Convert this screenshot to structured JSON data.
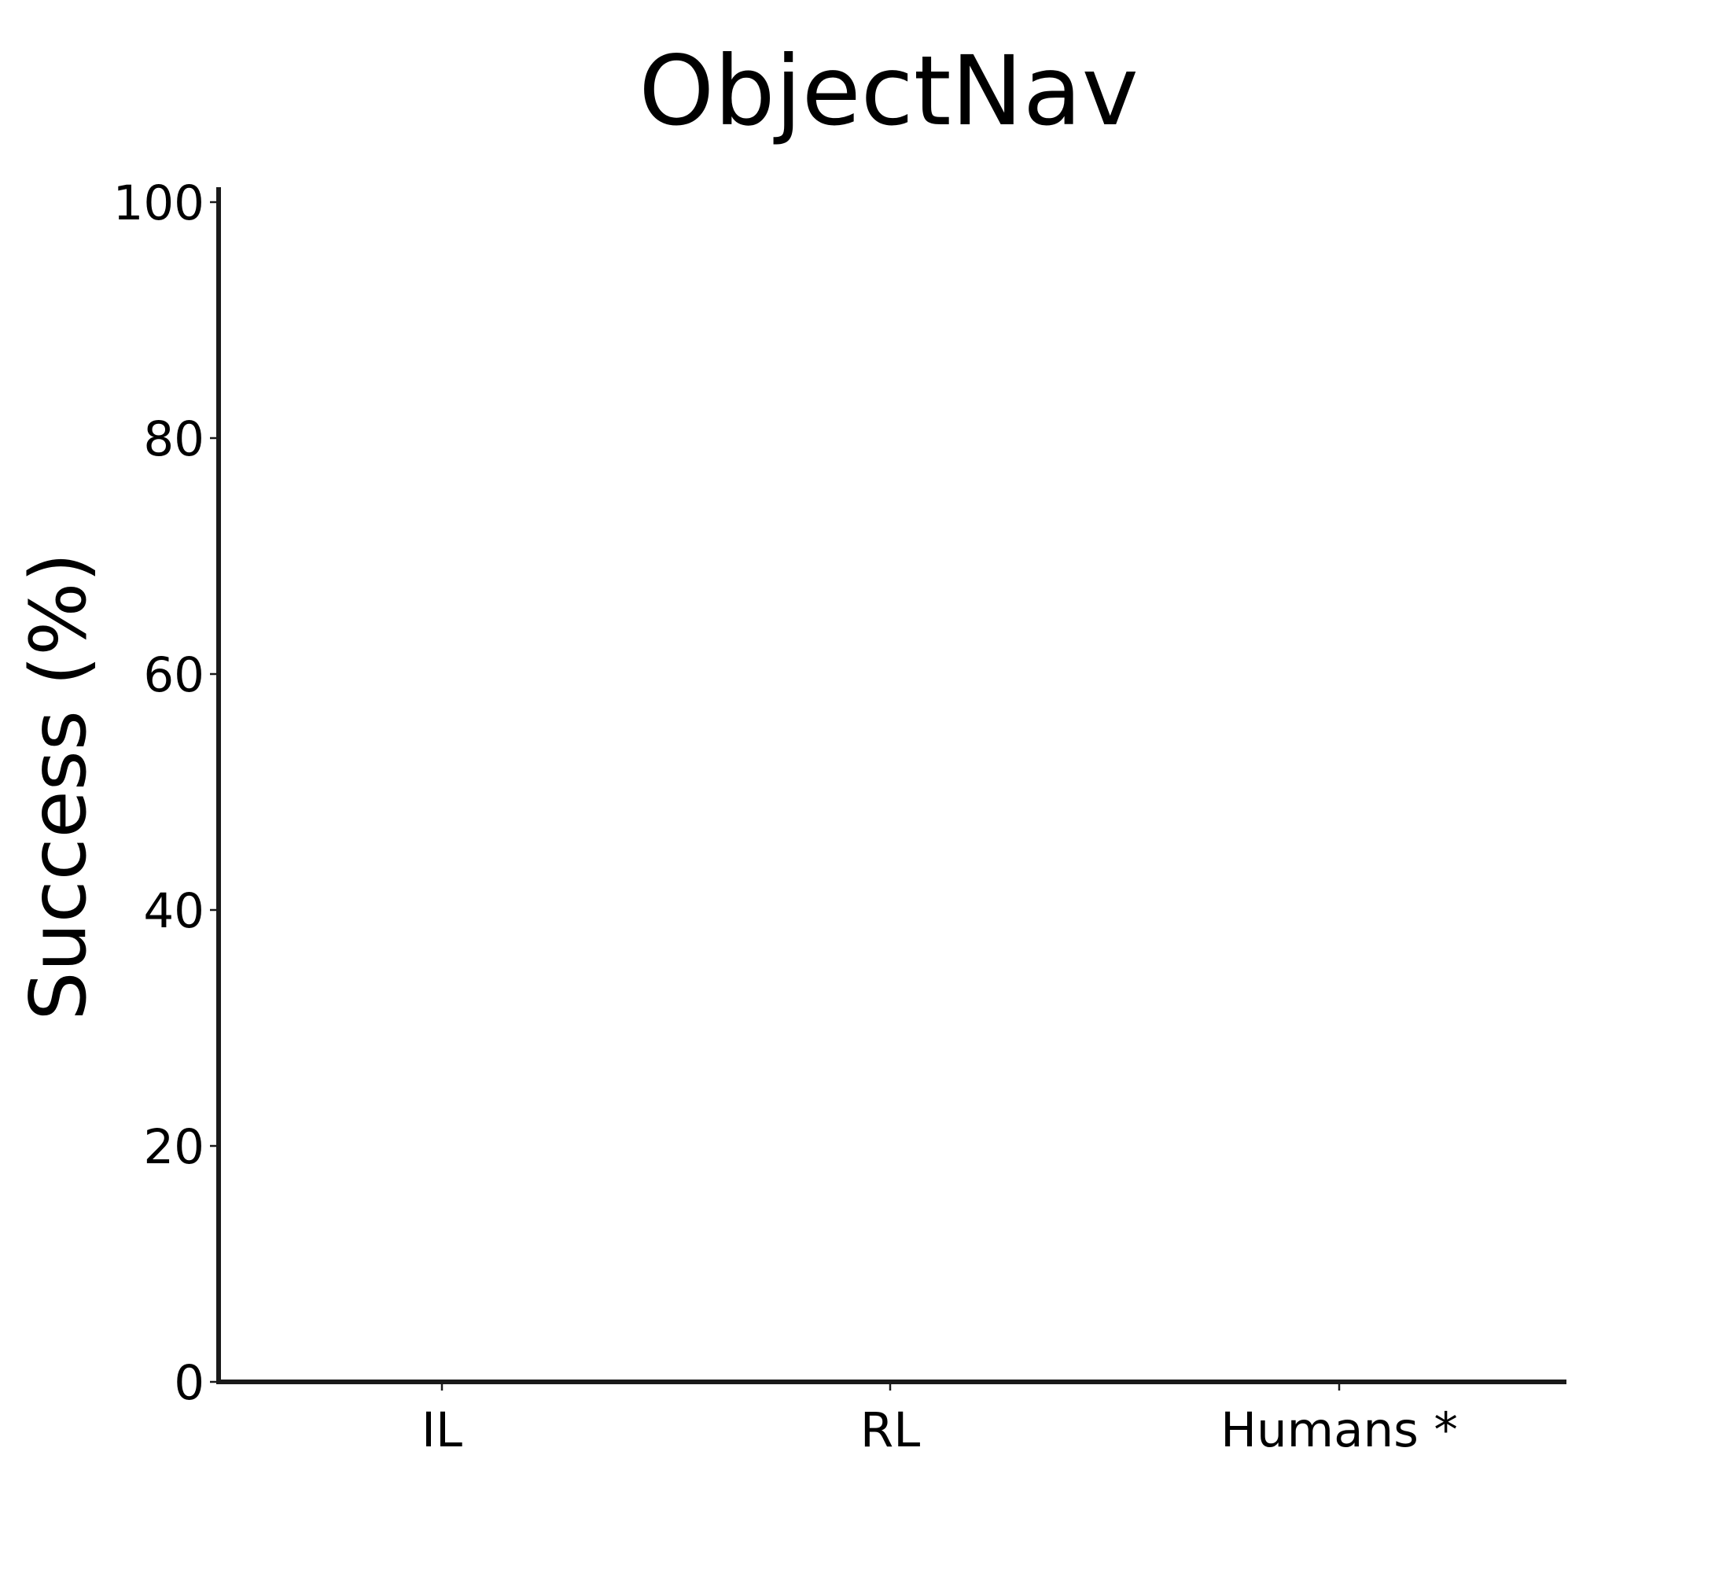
{
  "chart_data": {
    "type": "bar",
    "title": "ObjectNav",
    "xlabel": "",
    "ylabel": "Success (%)",
    "categories": [
      "IL",
      "RL",
      "Humans *"
    ],
    "values": [
      null,
      null,
      null
    ],
    "ylim": [
      0,
      100
    ],
    "yticks": [
      0,
      20,
      40,
      60,
      80,
      100
    ],
    "grid": false,
    "legend": "none"
  }
}
